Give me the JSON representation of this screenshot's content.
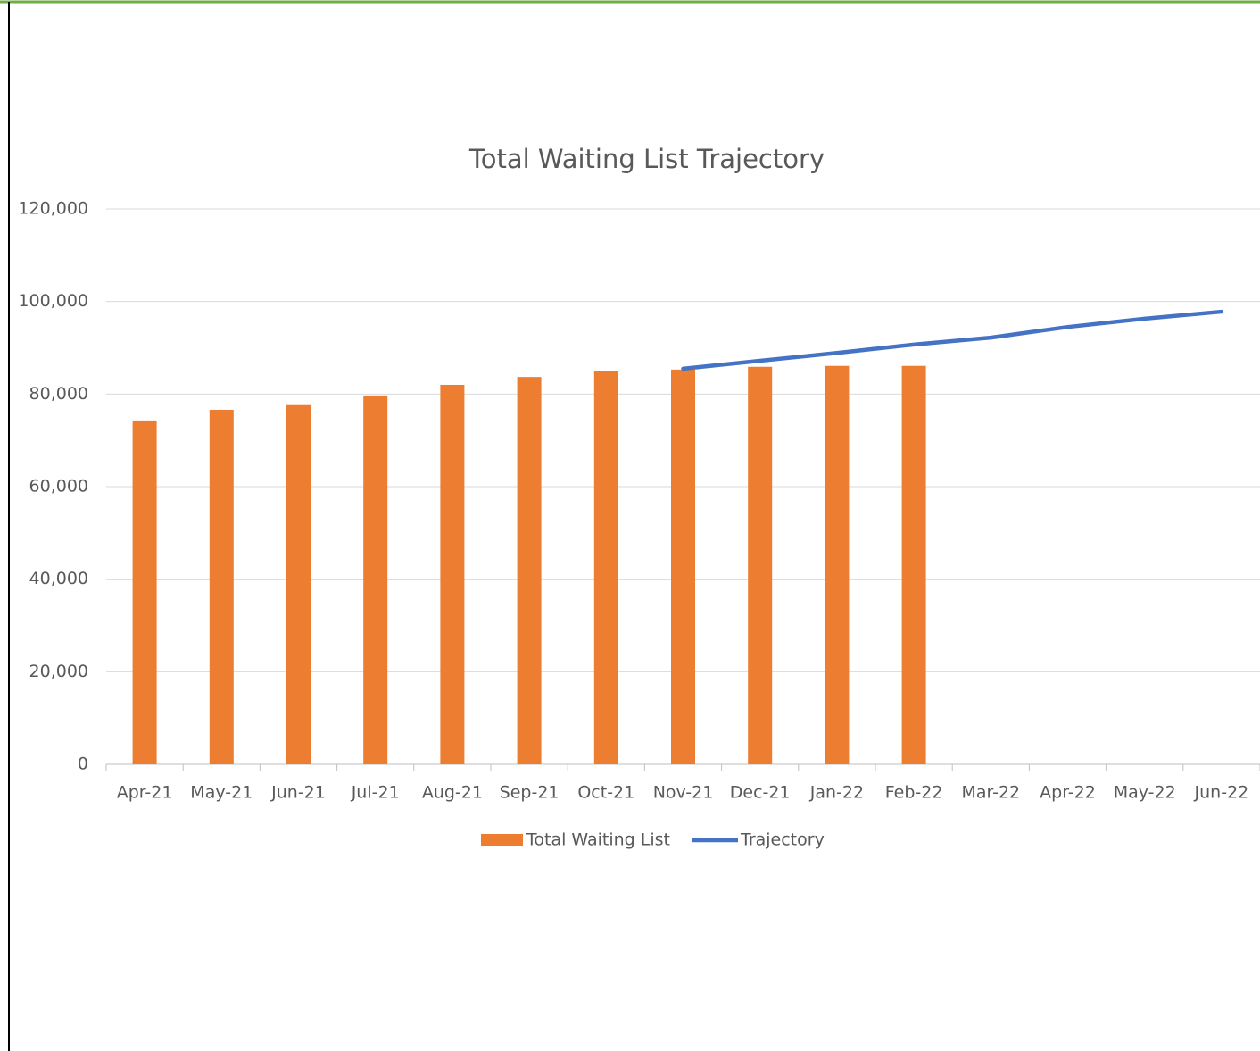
{
  "chart_data": {
    "type": "bar",
    "title": "Total Waiting List Trajectory",
    "categories": [
      "Apr-21",
      "May-21",
      "Jun-21",
      "Jul-21",
      "Aug-21",
      "Sep-21",
      "Oct-21",
      "Nov-21",
      "Dec-21",
      "Jan-22",
      "Feb-22",
      "Mar-22",
      "Apr-22",
      "May-22",
      "Jun-22"
    ],
    "series": [
      {
        "name": "Total Waiting List",
        "type": "bar",
        "color": "#ed7d31",
        "values": [
          74300,
          76600,
          77800,
          79700,
          82000,
          83700,
          84900,
          85300,
          85900,
          86100,
          86100,
          null,
          null,
          null,
          null
        ]
      },
      {
        "name": "Trajectory",
        "type": "line",
        "color": "#4472c4",
        "values": [
          null,
          null,
          null,
          null,
          null,
          null,
          null,
          85500,
          87200,
          88900,
          90700,
          92200,
          94500,
          96300,
          97800
        ]
      }
    ],
    "ylim": [
      0,
      120000
    ],
    "yticks": [
      0,
      {
        "value": 20000,
        "label": "20,000"
      },
      {
        "value": 40000,
        "label": "40,000"
      },
      {
        "value": 60000,
        "label": "60,000"
      },
      {
        "value": 80000,
        "label": "80,000"
      },
      {
        "value": 100000,
        "label": "100,000"
      },
      {
        "value": 120000,
        "label": "120,000"
      }
    ],
    "grid": true,
    "legend": "bottom"
  }
}
